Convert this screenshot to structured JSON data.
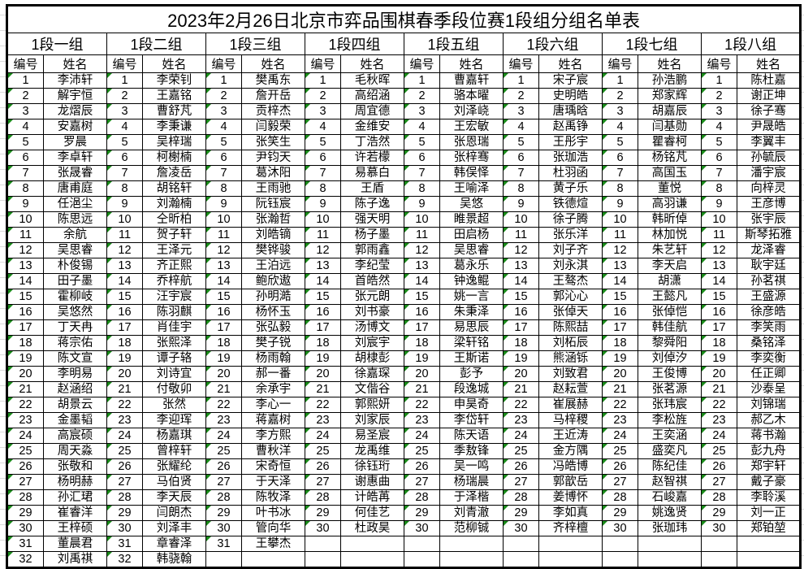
{
  "title": "2023年2月26日北京市弈品围棋春季段位赛1段组分组名单表",
  "col_no": "编号",
  "col_name": "姓名",
  "colors": {
    "border": "#000000",
    "comment_marker": "#1a8a1a"
  },
  "groups": [
    {
      "name": "1段一组",
      "players": [
        "李沛轩",
        "解宇恒",
        "龙熠辰",
        "安嘉树",
        "罗晨",
        "李卓轩",
        "张晟睿",
        "唐甫庭",
        "任浥尘",
        "陈思远",
        "余航",
        "吴思睿",
        "朴俊锡",
        "田子墨",
        "霍柳岐",
        "吴悠然",
        "丁天冉",
        "蒋宗佑",
        "陈文宣",
        "李明易",
        "赵涵绍",
        "胡景云",
        "金墨韬",
        "高宸硕",
        "周天淼",
        "张敬和",
        "杨明赫",
        "孙汇珺",
        "崔睿洋",
        "王梓硕",
        "董晨君",
        "刘禹祺"
      ]
    },
    {
      "name": "1段二组",
      "players": [
        "李荣钊",
        "王嘉铭",
        "曹舒芃",
        "李秉谦",
        "吴梓瑞",
        "柯榭楠",
        "詹凌岳",
        "胡铭轩",
        "刘瀚楠",
        "仝昕柏",
        "贺子轩",
        "王泽元",
        "齐正熙",
        "乔梓航",
        "汪宇宸",
        "陈羽麒",
        "肖佳宇",
        "张熙泽",
        "谭子辂",
        "刘诗宜",
        "付敬卯",
        "张然",
        "李迎珲",
        "杨嘉琪",
        "曾梓轩",
        "张耀纶",
        "马伯贤",
        "李天辰",
        "闫朗杰",
        "刘泽丰",
        "章睿泽",
        "韩骁翰"
      ]
    },
    {
      "name": "1段三组",
      "players": [
        "樊禹东",
        "詹开岳",
        "贡梓杰",
        "闫毅荣",
        "张笑生",
        "尹钧天",
        "葛沐阳",
        "王雨驰",
        "阮钰宸",
        "张瀚哲",
        "刘皓镝",
        "樊铧骏",
        "王泊远",
        "鲍欣遨",
        "孙明澔",
        "杨怀玉",
        "张弘毅",
        "樊子锐",
        "杨雨翰",
        "郝一番",
        "余承宇",
        "李心一",
        "蒋嘉树",
        "李方熙",
        "曹秋洋",
        "宋奇恒",
        "于天泽",
        "陈牧泽",
        "叶书冰",
        "管向华",
        "王攀杰"
      ]
    },
    {
      "name": "1段四组",
      "players": [
        "毛秋晖",
        "高绍涵",
        "周宜德",
        "金维安",
        "丁浩然",
        "许若檬",
        "易慕白",
        "王盾",
        "陈子逸",
        "强天明",
        "杨子墨",
        "郭雨鑫",
        "李纪莹",
        "首皓然",
        "张元朗",
        "刘书豪",
        "汤博文",
        "刘宸宇",
        "胡棣彭",
        "徐嘉琛",
        "文偕谷",
        "郭熙妍",
        "刘家辰",
        "易圣宸",
        "龙禹维",
        "徐钰珩",
        "谢惠曲",
        "计皓苒",
        "何佳艺",
        "杜政昊"
      ]
    },
    {
      "name": "1段五组",
      "players": [
        "曹嘉轩",
        "骆本曜",
        "刘泽峣",
        "王宏敏",
        "张恩瑞",
        "张梓骞",
        "韩俣怿",
        "王喻泽",
        "吴悠",
        "睢景超",
        "田启杨",
        "吴思睿",
        "葛永乐",
        "钟逸鲲",
        "姚一言",
        "朱秉泽",
        "易思辰",
        "梁轩铭",
        "王斯诺",
        "彭予",
        "段逸城",
        "申昊奇",
        "李岱轩",
        "陈天语",
        "季敖锋",
        "吴一鸣",
        "杨瑞晨",
        "于泽楷",
        "刘青澈",
        "范柳铖"
      ]
    },
    {
      "name": "1段六组",
      "players": [
        "宋子宸",
        "史明皓",
        "唐瑀晗",
        "赵禹铮",
        "王彤宇",
        "张珈浩",
        "杜羽函",
        "黄子乐",
        "铁德煊",
        "徐子腾",
        "张乐洋",
        "刘子齐",
        "刘永淇",
        "王骜杰",
        "郭沁心",
        "张倬天",
        "陈熙喆",
        "刘柘辰",
        "熊涵铄",
        "刘致君",
        "赵耘萱",
        "崔展赫",
        "马梓稷",
        "王近涛",
        "金方隅",
        "冯皓博",
        "郭歆岳",
        "姜博怀",
        "李如真",
        "齐梓檀"
      ]
    },
    {
      "name": "1段七组",
      "players": [
        "孙浩鹏",
        "郑家辉",
        "胡嘉辰",
        "闫基勋",
        "瞿睿柯",
        "杨铭芃",
        "高国玉",
        "董悦",
        "高羽谦",
        "韩昕倬",
        "林加悦",
        "朱艺轩",
        "李天启",
        "胡潇",
        "王懿凡",
        "张倬恺",
        "韩佳航",
        "黎舜阳",
        "刘倬汐",
        "王俊博",
        "张茗源",
        "张玮宸",
        "李松旌",
        "王奕涵",
        "盛奕凡",
        "陈纪佳",
        "赵智祺",
        "石峻嘉",
        "姚逸贤",
        "张珈玮"
      ]
    },
    {
      "name": "1段八组",
      "players": [
        "陈杜嘉",
        "谢正坤",
        "徐子骞",
        "尹晟皓",
        "李翼丰",
        "孙毓辰",
        "潘宇宸",
        "向梓灵",
        "王彦博",
        "张宇辰",
        "斯琴拓雅",
        "龙泽睿",
        "耿宇廷",
        "孙茗祺",
        "王盛源",
        "徐彦皓",
        "李笑雨",
        "桑铭泽",
        "李奕衡",
        "任正卿",
        "沙泰呈",
        "刘锦瑞",
        "郝乙木",
        "蒋书瀚",
        "彭九舟",
        "郑宇轩",
        "戴子豪",
        "李聆溪",
        "刘一正",
        "郑铂堃"
      ]
    }
  ],
  "numbers": [
    "1",
    "2",
    "3",
    "4",
    "5",
    "6",
    "7",
    "8",
    "9",
    "10",
    "11",
    "12",
    "13",
    "14",
    "15",
    "16",
    "17",
    "18",
    "19",
    "20",
    "21",
    "22",
    "23",
    "24",
    "25",
    "26",
    "27",
    "28",
    "29",
    "30",
    "31",
    "32"
  ]
}
